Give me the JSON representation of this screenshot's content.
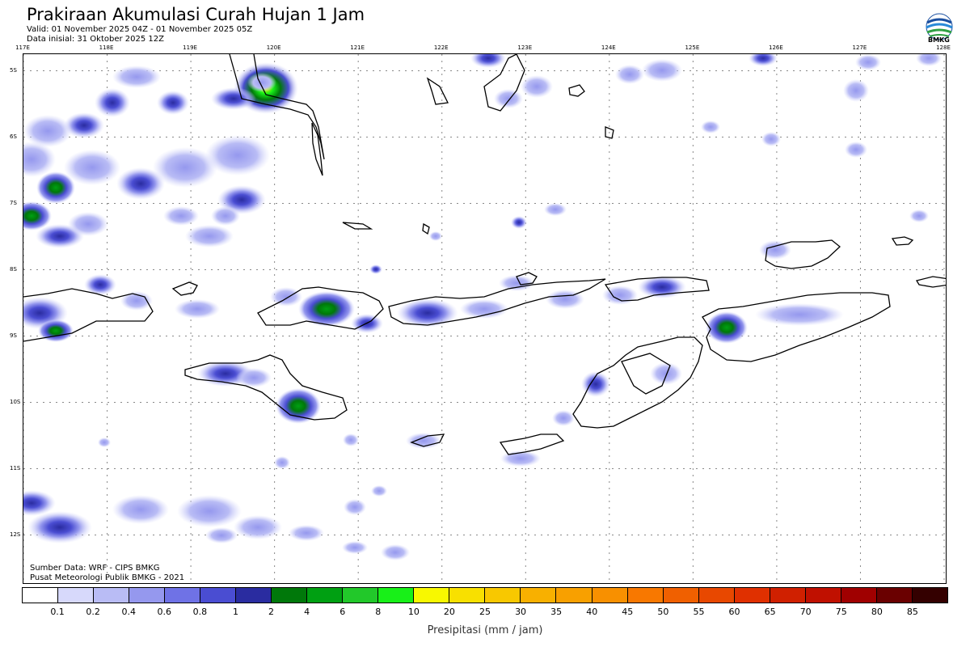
{
  "header": {
    "title": "Prakiraan Akumulasi Curah Hujan 1 Jam",
    "valid": "Valid: 01 November 2025 04Z - 01 November 2025 05Z",
    "initial": "Data inisial: 31 Oktober 2025 12Z"
  },
  "logo": {
    "icon": "bmkg-logo-icon",
    "text": "BMKG"
  },
  "map": {
    "lon_labels": [
      "117E",
      "118E",
      "119E",
      "120E",
      "121E",
      "122E",
      "123E",
      "124E",
      "125E",
      "126E",
      "127E",
      "128E"
    ],
    "lat_labels": [
      "5S",
      "6S",
      "7S",
      "8S",
      "9S",
      "10S",
      "11S",
      "12S"
    ],
    "lon_range": [
      117,
      128
    ],
    "lat_range": [
      -4.75,
      -12.75
    ],
    "rain_cells": [
      {
        "lon": 119.9,
        "lat": -5.2,
        "mm": 10
      },
      {
        "lon": 119.8,
        "lat": -5.35,
        "mm": 2
      },
      {
        "lon": 118.1,
        "lat": -5.5,
        "mm": 0.8
      },
      {
        "lon": 118.7,
        "lat": -5.5,
        "mm": 0.8
      },
      {
        "lon": 117.7,
        "lat": -5.9,
        "mm": 0.8
      },
      {
        "lon": 117.4,
        "lat": -7.0,
        "mm": 2
      },
      {
        "lon": 118.4,
        "lat": -7.0,
        "mm": 1
      },
      {
        "lon": 117.1,
        "lat": -7.2,
        "mm": 2
      },
      {
        "lon": 117.3,
        "lat": -7.5,
        "mm": 0.8
      },
      {
        "lon": 119.7,
        "lat": -7.0,
        "mm": 0.6
      },
      {
        "lon": 119.8,
        "lat": -7.1,
        "mm": 0.4
      },
      {
        "lon": 117.1,
        "lat": -8.8,
        "mm": 1
      },
      {
        "lon": 117.4,
        "lat": -8.9,
        "mm": 2
      },
      {
        "lon": 120.6,
        "lat": -8.6,
        "mm": 2
      },
      {
        "lon": 121.9,
        "lat": -8.7,
        "mm": 0.8
      },
      {
        "lon": 125.3,
        "lat": -8.9,
        "mm": 2
      },
      {
        "lon": 126.6,
        "lat": -8.6,
        "mm": 0.6
      },
      {
        "lon": 124.8,
        "lat": -8.3,
        "mm": 0.8
      },
      {
        "lon": 119.3,
        "lat": -9.55,
        "mm": 0.8
      },
      {
        "lon": 120.3,
        "lat": -10.05,
        "mm": 2
      },
      {
        "lon": 123.9,
        "lat": -9.7,
        "mm": 0.6
      },
      {
        "lon": 117.4,
        "lat": -12.2,
        "mm": 0.8
      },
      {
        "lon": 117.1,
        "lat": -11.8,
        "mm": 0.6
      }
    ]
  },
  "credit": {
    "source": "Sumber Data: WRF - CIPS BMKG",
    "org": "Pusat Meteorologi Publik BMKG - 2021"
  },
  "legend": {
    "ticks": [
      "0.1",
      "0.2",
      "0.4",
      "0.6",
      "0.8",
      "1",
      "2",
      "4",
      "6",
      "8",
      "10",
      "20",
      "25",
      "30",
      "35",
      "40",
      "45",
      "50",
      "55",
      "60",
      "65",
      "70",
      "75",
      "80",
      "85"
    ],
    "colors": [
      "#ffffff",
      "#d7d9fb",
      "#b9bcf5",
      "#9598ee",
      "#6f72e6",
      "#4a4dd2",
      "#2a2ca0",
      "#00780a",
      "#00a012",
      "#22c82a",
      "#18f018",
      "#f8f800",
      "#f8e000",
      "#f8c800",
      "#f8b000",
      "#f8a000",
      "#f89000",
      "#f87800",
      "#f06000",
      "#e84800",
      "#e03000",
      "#d02000",
      "#c01000",
      "#a00000",
      "#6a0000",
      "#340000"
    ],
    "unit": "Presipitasi (mm / jam)"
  }
}
